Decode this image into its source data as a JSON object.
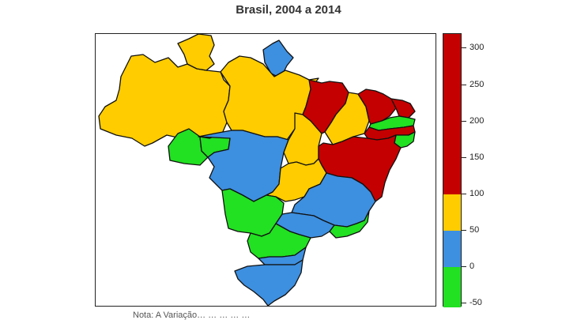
{
  "title": "Brasil, 2004 a 2014",
  "legend": {
    "ticks": [
      "300",
      "250",
      "200",
      "150",
      "100",
      "50",
      "0",
      "-50"
    ],
    "bands": [
      {
        "name": "red",
        "color": "#c40000",
        "from": 100,
        "to": 320
      },
      {
        "name": "yellow",
        "color": "#ffcc00",
        "from": 50,
        "to": 100
      },
      {
        "name": "blue",
        "color": "#3d8fe0",
        "from": 0,
        "to": 50
      },
      {
        "name": "green",
        "color": "#22e022",
        "from": -55,
        "to": 0
      }
    ]
  },
  "colors": {
    "red": "#c40000",
    "yellow": "#ffcc00",
    "blue": "#3d8fe0",
    "green": "#22e022"
  },
  "regions": [
    {
      "name": "amazonas",
      "color": "yellow"
    },
    {
      "name": "roraima",
      "color": "yellow"
    },
    {
      "name": "amapa",
      "color": "blue"
    },
    {
      "name": "para",
      "color": "yellow"
    },
    {
      "name": "acre",
      "color": "green"
    },
    {
      "name": "rondonia",
      "color": "green"
    },
    {
      "name": "mato-grosso",
      "color": "blue"
    },
    {
      "name": "tocantins",
      "color": "yellow"
    },
    {
      "name": "maranhao",
      "color": "red"
    },
    {
      "name": "piaui",
      "color": "yellow"
    },
    {
      "name": "ceara",
      "color": "red"
    },
    {
      "name": "rio-grande-do-norte",
      "color": "red"
    },
    {
      "name": "paraiba",
      "color": "green"
    },
    {
      "name": "pernambuco",
      "color": "red"
    },
    {
      "name": "alagoas-sergipe",
      "color": "green"
    },
    {
      "name": "bahia",
      "color": "red"
    },
    {
      "name": "goias",
      "color": "yellow"
    },
    {
      "name": "minas-gerais",
      "color": "blue"
    },
    {
      "name": "mato-grosso-do-sul",
      "color": "green"
    },
    {
      "name": "sao-paulo",
      "color": "blue"
    },
    {
      "name": "rio-de-janeiro",
      "color": "green"
    },
    {
      "name": "parana",
      "color": "green"
    },
    {
      "name": "santa-catarina",
      "color": "blue"
    },
    {
      "name": "rio-grande-do-sul",
      "color": "blue"
    }
  ],
  "caption": "Nota: A Variação… … … … …"
}
